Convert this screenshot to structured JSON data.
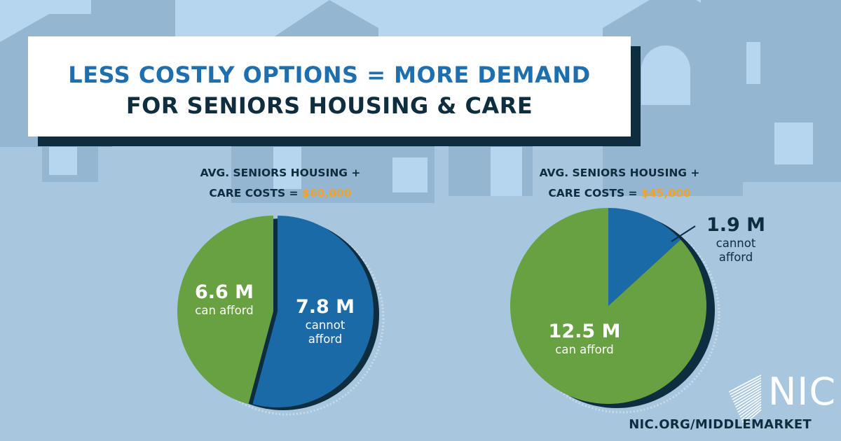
{
  "header": {
    "title_line1": "LESS COSTLY OPTIONS = MORE DEMAND",
    "title_line2": "FOR SENIORS HOUSING & CARE"
  },
  "colors": {
    "background": "#a8c6de",
    "house_silhouette": "#95b6d1",
    "can_afford": "#67a141",
    "cannot_afford": "#1b6aa8",
    "dark_navy": "#0e2d3f",
    "amount_orange": "#f0a22a"
  },
  "chart_data": [
    {
      "type": "pie",
      "title_prefix": "AVG. SENIORS HOUSING +",
      "title_line2": "CARE COSTS = ",
      "cost_amount": "$60,000",
      "slices": [
        {
          "label_value": "7.8 M",
          "label_text_1": "cannot",
          "label_text_2": "afford",
          "value": 7.8,
          "color": "#1b6aa8"
        },
        {
          "label_value": "6.6 M",
          "label_text_1": "can afford",
          "value": 6.6,
          "color": "#67a141"
        }
      ]
    },
    {
      "type": "pie",
      "title_prefix": "AVG. SENIORS HOUSING +",
      "title_line2": "CARE COSTS = ",
      "cost_amount": "$45,000",
      "slices": [
        {
          "label_value": "1.9 M",
          "label_text_1": "cannot",
          "label_text_2": "afford",
          "value": 1.9,
          "color": "#1b6aa8"
        },
        {
          "label_value": "12.5 M",
          "label_text_1": "can afford",
          "value": 12.5,
          "color": "#67a141"
        }
      ]
    }
  ],
  "footer": {
    "logo_text": "NIC",
    "url": "NIC.ORG/MIDDLEMARKET"
  }
}
